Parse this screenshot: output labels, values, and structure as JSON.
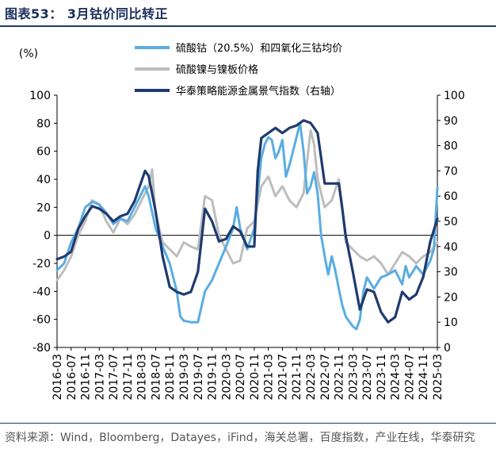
{
  "figure": {
    "title": "图表53： 3月钴价同比转正",
    "source": "资料来源：Wind，Bloomberg，Datayes，iFind，海关总署，百度指数，产业在线，华泰研究"
  },
  "colors": {
    "cobalt": "#5aade2",
    "nickel": "#bdbdbd",
    "index": "#1f3a6e"
  },
  "chart_data": {
    "type": "line",
    "left_axis": {
      "unit_label": "(%)",
      "min": -80,
      "max": 100,
      "ticks": [
        100,
        80,
        60,
        40,
        20,
        0,
        -20,
        -40,
        -60,
        -80
      ]
    },
    "right_axis": {
      "min": 0,
      "max": 100,
      "ticks": [
        100,
        90,
        80,
        70,
        60,
        50,
        40,
        30,
        20,
        10,
        0
      ]
    },
    "x_tick_labels": [
      "2016-03",
      "2016-07",
      "2016-11",
      "2017-03",
      "2017-07",
      "2017-11",
      "2018-03",
      "2018-07",
      "2018-11",
      "2019-03",
      "2019-07",
      "2019-11",
      "2020-03",
      "2020-07",
      "2020-11",
      "2021-03",
      "2021-07",
      "2021-11",
      "2022-03",
      "2022-07",
      "2022-11",
      "2023-03",
      "2023-07",
      "2023-11",
      "2024-03",
      "2024-07",
      "2024-11",
      "2025-03"
    ],
    "legend": [
      {
        "name": "硫酸钴（20.5%）和四氧化三钴均价",
        "color": "#5aade2"
      },
      {
        "name": "硫酸镍与镍板价格",
        "color": "#bdbdbd"
      },
      {
        "name": "华泰策略能源金属景气指数（右轴）",
        "color": "#1f3a6e"
      }
    ],
    "series": [
      {
        "name": "硫酸钴（20.5%）和四氧化三钴均价",
        "axis": "left",
        "points": [
          [
            "2016-03",
            -25
          ],
          [
            "2016-05",
            -20
          ],
          [
            "2016-07",
            -5
          ],
          [
            "2016-09",
            5
          ],
          [
            "2016-11",
            20
          ],
          [
            "2017-01",
            24
          ],
          [
            "2017-03",
            22
          ],
          [
            "2017-05",
            16
          ],
          [
            "2017-07",
            8
          ],
          [
            "2017-09",
            12
          ],
          [
            "2017-11",
            10
          ],
          [
            "2018-01",
            20
          ],
          [
            "2018-03",
            30
          ],
          [
            "2018-04",
            35
          ],
          [
            "2018-05",
            28
          ],
          [
            "2018-07",
            5
          ],
          [
            "2018-09",
            -8
          ],
          [
            "2018-11",
            -20
          ],
          [
            "2019-01",
            -40
          ],
          [
            "2019-02",
            -58
          ],
          [
            "2019-03",
            -61
          ],
          [
            "2019-05",
            -62
          ],
          [
            "2019-07",
            -62
          ],
          [
            "2019-09",
            -40
          ],
          [
            "2019-11",
            -32
          ],
          [
            "2020-01",
            -20
          ],
          [
            "2020-03",
            -8
          ],
          [
            "2020-05",
            5
          ],
          [
            "2020-06",
            20
          ],
          [
            "2020-07",
            5
          ],
          [
            "2020-09",
            -10
          ],
          [
            "2020-11",
            5
          ],
          [
            "2020-12",
            30
          ],
          [
            "2021-01",
            55
          ],
          [
            "2021-02",
            65
          ],
          [
            "2021-03",
            70
          ],
          [
            "2021-04",
            68
          ],
          [
            "2021-05",
            55
          ],
          [
            "2021-06",
            60
          ],
          [
            "2021-07",
            68
          ],
          [
            "2021-08",
            42
          ],
          [
            "2021-09",
            50
          ],
          [
            "2021-10",
            60
          ],
          [
            "2021-11",
            70
          ],
          [
            "2021-12",
            80
          ],
          [
            "2022-01",
            60
          ],
          [
            "2022-02",
            30
          ],
          [
            "2022-03",
            35
          ],
          [
            "2022-04",
            45
          ],
          [
            "2022-05",
            30
          ],
          [
            "2022-06",
            0
          ],
          [
            "2022-07",
            -15
          ],
          [
            "2022-08",
            -28
          ],
          [
            "2022-09",
            -15
          ],
          [
            "2022-10",
            -25
          ],
          [
            "2022-11",
            -38
          ],
          [
            "2022-12",
            -50
          ],
          [
            "2023-01",
            -58
          ],
          [
            "2023-03",
            -65
          ],
          [
            "2023-04",
            -67
          ],
          [
            "2023-05",
            -60
          ],
          [
            "2023-06",
            -40
          ],
          [
            "2023-07",
            -30
          ],
          [
            "2023-09",
            -38
          ],
          [
            "2023-11",
            -30
          ],
          [
            "2024-01",
            -28
          ],
          [
            "2024-03",
            -25
          ],
          [
            "2024-05",
            -35
          ],
          [
            "2024-06",
            -22
          ],
          [
            "2024-07",
            -30
          ],
          [
            "2024-09",
            -22
          ],
          [
            "2024-11",
            -28
          ],
          [
            "2025-01",
            -18
          ],
          [
            "2025-02",
            -10
          ],
          [
            "2025-03",
            34
          ]
        ]
      },
      {
        "name": "硫酸镍与镍板价格",
        "axis": "left",
        "points": [
          [
            "2016-03",
            -32
          ],
          [
            "2016-05",
            -25
          ],
          [
            "2016-07",
            -15
          ],
          [
            "2016-09",
            0
          ],
          [
            "2016-11",
            10
          ],
          [
            "2017-01",
            25
          ],
          [
            "2017-03",
            22
          ],
          [
            "2017-05",
            10
          ],
          [
            "2017-07",
            2
          ],
          [
            "2017-09",
            12
          ],
          [
            "2017-11",
            8
          ],
          [
            "2018-01",
            15
          ],
          [
            "2018-03",
            25
          ],
          [
            "2018-05",
            35
          ],
          [
            "2018-06",
            47
          ],
          [
            "2018-07",
            15
          ],
          [
            "2018-09",
            -5
          ],
          [
            "2018-11",
            -10
          ],
          [
            "2019-01",
            -15
          ],
          [
            "2019-03",
            -5
          ],
          [
            "2019-05",
            -8
          ],
          [
            "2019-07",
            -10
          ],
          [
            "2019-09",
            28
          ],
          [
            "2019-11",
            25
          ],
          [
            "2020-01",
            0
          ],
          [
            "2020-03",
            -10
          ],
          [
            "2020-05",
            -20
          ],
          [
            "2020-07",
            -18
          ],
          [
            "2020-09",
            5
          ],
          [
            "2020-11",
            10
          ],
          [
            "2021-01",
            35
          ],
          [
            "2021-03",
            42
          ],
          [
            "2021-05",
            28
          ],
          [
            "2021-07",
            35
          ],
          [
            "2021-09",
            25
          ],
          [
            "2021-11",
            20
          ],
          [
            "2022-01",
            30
          ],
          [
            "2022-03",
            75
          ],
          [
            "2022-04",
            65
          ],
          [
            "2022-05",
            40
          ],
          [
            "2022-07",
            20
          ],
          [
            "2022-09",
            25
          ],
          [
            "2022-11",
            40
          ],
          [
            "2022-12",
            20
          ],
          [
            "2023-01",
            -5
          ],
          [
            "2023-03",
            -10
          ],
          [
            "2023-05",
            -15
          ],
          [
            "2023-07",
            -18
          ],
          [
            "2023-09",
            -15
          ],
          [
            "2023-11",
            -20
          ],
          [
            "2024-01",
            -28
          ],
          [
            "2024-03",
            -20
          ],
          [
            "2024-05",
            -12
          ],
          [
            "2024-07",
            -15
          ],
          [
            "2024-09",
            -20
          ],
          [
            "2024-11",
            -15
          ],
          [
            "2025-01",
            -12
          ],
          [
            "2025-03",
            -5
          ]
        ]
      },
      {
        "name": "华泰策略能源金属景气指数（右轴）",
        "axis": "right",
        "points": [
          [
            "2016-03",
            35
          ],
          [
            "2016-05",
            36
          ],
          [
            "2016-07",
            38
          ],
          [
            "2016-09",
            47
          ],
          [
            "2016-11",
            52
          ],
          [
            "2017-01",
            56
          ],
          [
            "2017-03",
            55
          ],
          [
            "2017-05",
            53
          ],
          [
            "2017-07",
            50
          ],
          [
            "2017-09",
            52
          ],
          [
            "2017-11",
            53
          ],
          [
            "2018-01",
            58
          ],
          [
            "2018-03",
            66
          ],
          [
            "2018-04",
            70
          ],
          [
            "2018-05",
            68
          ],
          [
            "2018-07",
            54
          ],
          [
            "2018-09",
            36
          ],
          [
            "2018-11",
            24
          ],
          [
            "2019-01",
            22
          ],
          [
            "2019-03",
            21
          ],
          [
            "2019-05",
            22
          ],
          [
            "2019-07",
            30
          ],
          [
            "2019-09",
            55
          ],
          [
            "2019-11",
            50
          ],
          [
            "2020-01",
            42
          ],
          [
            "2020-03",
            43
          ],
          [
            "2020-05",
            48
          ],
          [
            "2020-07",
            46
          ],
          [
            "2020-09",
            40
          ],
          [
            "2020-11",
            40
          ],
          [
            "2020-12",
            70
          ],
          [
            "2021-01",
            83
          ],
          [
            "2021-03",
            85
          ],
          [
            "2021-05",
            87
          ],
          [
            "2021-07",
            85
          ],
          [
            "2021-09",
            87
          ],
          [
            "2021-11",
            88
          ],
          [
            "2022-01",
            90
          ],
          [
            "2022-03",
            89
          ],
          [
            "2022-05",
            85
          ],
          [
            "2022-07",
            65
          ],
          [
            "2022-09",
            65
          ],
          [
            "2022-11",
            65
          ],
          [
            "2022-12",
            55
          ],
          [
            "2023-01",
            44
          ],
          [
            "2023-03",
            30
          ],
          [
            "2023-05",
            15
          ],
          [
            "2023-07",
            23
          ],
          [
            "2023-09",
            22
          ],
          [
            "2023-11",
            14
          ],
          [
            "2024-01",
            10
          ],
          [
            "2024-03",
            12
          ],
          [
            "2024-05",
            22
          ],
          [
            "2024-07",
            19
          ],
          [
            "2024-09",
            21
          ],
          [
            "2024-11",
            28
          ],
          [
            "2025-01",
            42
          ],
          [
            "2025-03",
            51
          ]
        ]
      }
    ]
  }
}
